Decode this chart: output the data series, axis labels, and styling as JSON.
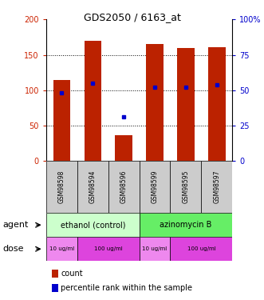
{
  "title": "GDS2050 / 6163_at",
  "samples": [
    "GSM98598",
    "GSM98594",
    "GSM98596",
    "GSM98599",
    "GSM98595",
    "GSM98597"
  ],
  "counts": [
    114,
    170,
    37,
    165,
    160,
    161
  ],
  "percentile_ranks": [
    48,
    55,
    31,
    52,
    52,
    54
  ],
  "bar_color": "#bb2200",
  "dot_color": "#0000cc",
  "ylim_left": [
    0,
    200
  ],
  "ylim_right": [
    0,
    100
  ],
  "yticks_left": [
    0,
    50,
    100,
    150,
    200
  ],
  "yticks_right": [
    0,
    25,
    50,
    75,
    100
  ],
  "yticklabels_left": [
    "0",
    "50",
    "100",
    "150",
    "200"
  ],
  "yticklabels_right": [
    "0",
    "25",
    "50",
    "75",
    "100%"
  ],
  "agent_labels": [
    {
      "text": "ethanol (control)",
      "start": 0,
      "end": 3
    },
    {
      "text": "azinomycin B",
      "start": 3,
      "end": 6
    }
  ],
  "agent_colors": [
    "#ccffcc",
    "#66ee66"
  ],
  "dose_labels": [
    {
      "text": "10 ug/ml",
      "start": 0,
      "end": 1
    },
    {
      "text": "100 ug/ml",
      "start": 1,
      "end": 3
    },
    {
      "text": "10 ug/ml",
      "start": 3,
      "end": 4
    },
    {
      "text": "100 ug/ml",
      "start": 4,
      "end": 6
    }
  ],
  "dose_colors": [
    "#ee88ee",
    "#dd44dd",
    "#ee88ee",
    "#dd44dd"
  ],
  "sample_bg_color": "#cccccc",
  "left_axis_color": "#cc2200",
  "right_axis_color": "#0000cc",
  "grid_color": "#000000",
  "bar_width": 0.55,
  "legend_count_color": "#bb2200",
  "legend_dot_color": "#0000cc",
  "left_label_agent": "agent",
  "left_label_dose": "dose",
  "legend_line1": "count",
  "legend_line2": "percentile rank within the sample"
}
